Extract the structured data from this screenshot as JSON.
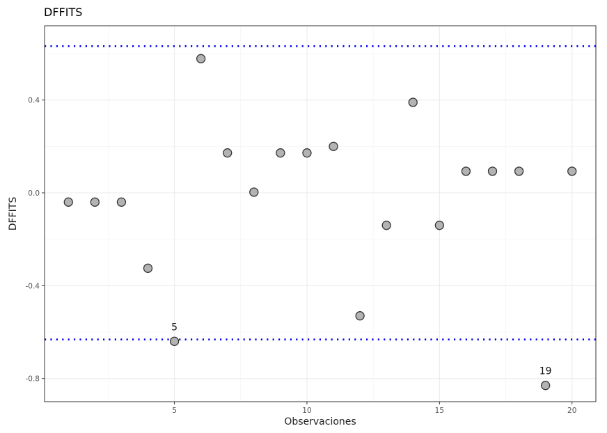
{
  "chart_data": {
    "type": "scatter",
    "title": "DFFITS",
    "xlabel": "Observaciones",
    "ylabel": "DFFITS",
    "xlim": [
      0.1,
      20.9
    ],
    "ylim": [
      -0.9,
      0.72
    ],
    "x_ticks": [
      5,
      10,
      15,
      20
    ],
    "x_minor_ticks": [
      2.5,
      7.5,
      12.5,
      17.5
    ],
    "y_ticks": [
      -0.8,
      -0.4,
      0.0,
      0.4
    ],
    "y_tick_labels": [
      "-0.8",
      "-0.4",
      "0.0",
      "0.4"
    ],
    "y_minor_ticks": [
      -0.6,
      -0.2,
      0.2,
      0.6
    ],
    "grid": true,
    "thresholds": [
      0.632,
      -0.632
    ],
    "threshold_color": "#0000ee",
    "point_fill": "#b3b3b3",
    "point_stroke": "#333333",
    "points": [
      {
        "x": 1,
        "y": -0.04
      },
      {
        "x": 2,
        "y": -0.04
      },
      {
        "x": 3,
        "y": -0.04
      },
      {
        "x": 4,
        "y": -0.325
      },
      {
        "x": 5,
        "y": -0.64,
        "label": "5"
      },
      {
        "x": 6,
        "y": 0.578
      },
      {
        "x": 7,
        "y": 0.172
      },
      {
        "x": 8,
        "y": 0.003
      },
      {
        "x": 9,
        "y": 0.172
      },
      {
        "x": 10,
        "y": 0.172
      },
      {
        "x": 11,
        "y": 0.2
      },
      {
        "x": 12,
        "y": -0.53
      },
      {
        "x": 13,
        "y": -0.14
      },
      {
        "x": 14,
        "y": 0.39
      },
      {
        "x": 15,
        "y": -0.14
      },
      {
        "x": 16,
        "y": 0.093
      },
      {
        "x": 17,
        "y": 0.093
      },
      {
        "x": 18,
        "y": 0.093
      },
      {
        "x": 19,
        "y": -0.83,
        "label": "19"
      },
      {
        "x": 20,
        "y": 0.093
      }
    ]
  }
}
